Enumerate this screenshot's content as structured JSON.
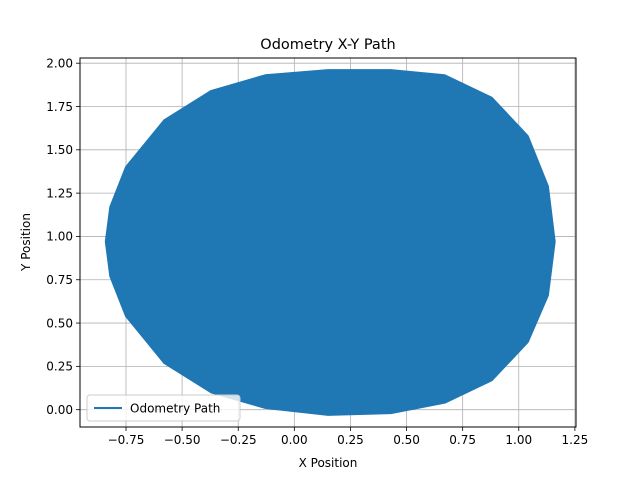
{
  "chart_data": {
    "type": "line",
    "title": "Odometry X-Y Path",
    "xlabel": "X Position",
    "ylabel": "Y Position",
    "xlim": [
      -0.955,
      1.255
    ],
    "ylim": [
      -0.1,
      2.03
    ],
    "xticks": [
      -0.75,
      -0.5,
      -0.25,
      0.0,
      0.25,
      0.5,
      0.75,
      1.0,
      1.25
    ],
    "xtick_labels": [
      "−0.75",
      "−0.50",
      "−0.25",
      "0.00",
      "0.25",
      "0.50",
      "0.75",
      "1.00",
      "1.25"
    ],
    "yticks": [
      0.0,
      0.25,
      0.5,
      0.75,
      1.0,
      1.25,
      1.5,
      1.75,
      2.0
    ],
    "ytick_labels": [
      "0.00",
      "0.25",
      "0.50",
      "0.75",
      "1.00",
      "1.25",
      "1.50",
      "1.75",
      "2.00"
    ],
    "grid": true,
    "legend_position": "lower-left",
    "series": [
      {
        "name": "Odometry Path",
        "color": "#1f77b4",
        "shape": "filled ellipse (densely overlapping loops)",
        "center": [
          0.15,
          0.97
        ],
        "x_range": [
          -0.84,
          1.16
        ],
        "y_range": [
          -0.03,
          1.96
        ],
        "points": [
          [
            1.16,
            0.97
          ],
          [
            1.13,
            1.29
          ],
          [
            1.04,
            1.58
          ],
          [
            0.88,
            1.8
          ],
          [
            0.67,
            1.93
          ],
          [
            0.43,
            1.96
          ],
          [
            0.15,
            1.96
          ],
          [
            -0.13,
            1.93
          ],
          [
            -0.37,
            1.84
          ],
          [
            -0.58,
            1.67
          ],
          [
            -0.75,
            1.4
          ],
          [
            -0.82,
            1.17
          ],
          [
            -0.84,
            0.97
          ],
          [
            -0.82,
            0.77
          ],
          [
            -0.75,
            0.54
          ],
          [
            -0.58,
            0.27
          ],
          [
            -0.37,
            0.1
          ],
          [
            -0.13,
            0.01
          ],
          [
            0.15,
            -0.03
          ],
          [
            0.43,
            -0.02
          ],
          [
            0.67,
            0.04
          ],
          [
            0.88,
            0.17
          ],
          [
            1.04,
            0.39
          ],
          [
            1.13,
            0.66
          ],
          [
            1.16,
            0.97
          ]
        ]
      }
    ]
  }
}
